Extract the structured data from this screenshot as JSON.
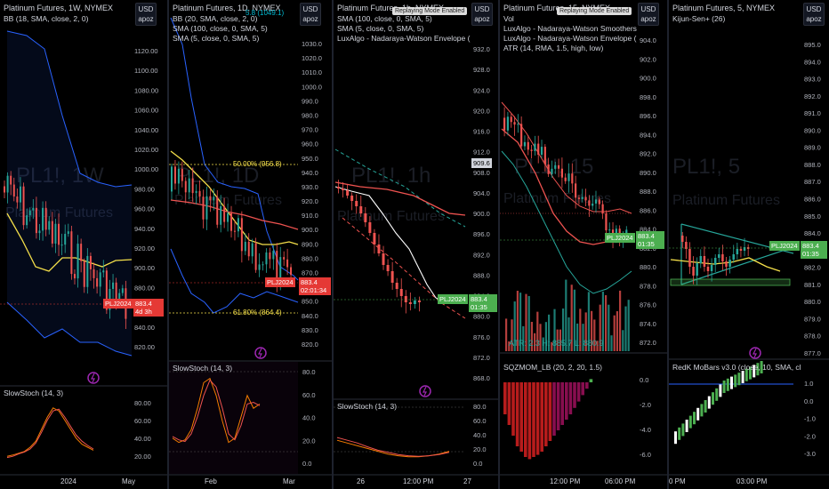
{
  "panels": [
    {
      "id": "p1",
      "title": "Platinum Futures, 1W, NYMEX",
      "indicators": [
        "BB (18, SMA, close, 2, 0)"
      ],
      "watermark": "PL1!, 1W",
      "watermark_sub": "Platinum Futures",
      "yticks": [
        "1120.00",
        "1100.00",
        "1080.00",
        "1060.00",
        "1040.00",
        "1020.00",
        "1000.00",
        "980.00",
        "960.00",
        "940.00",
        "920.00",
        "900.00",
        "880.00",
        "860.00",
        "840.00",
        "820.00"
      ],
      "price_tag": {
        "symbol": "PLJ2024",
        "price": "883.4",
        "countdown": "4d 3h"
      },
      "sub_title": "SlowStoch (14, 3)",
      "sub_ticks": [
        "80.00",
        "60.00",
        "40.00",
        "20.00"
      ],
      "xticks": [
        "2024",
        "May"
      ]
    },
    {
      "id": "p2",
      "title": "Platinum Futures, 1D, NYMEX",
      "indicators": [
        "BB (20, SMA, close, 2, 0)",
        "SMA (100, close, 0, SMA, 5)",
        "SMA (5, close, 0, SMA, 5)"
      ],
      "watermark": "PL1!, 1D",
      "watermark_sub": "Platinum Futures",
      "overlay_value": "5.8 (1049.1)",
      "fib": [
        {
          "label": "50.00% (956.8)"
        },
        {
          "label": "61.80% (864.4)"
        }
      ],
      "yticks": [
        "1030.0",
        "1020.0",
        "1010.0",
        "1000.0",
        "990.0",
        "980.0",
        "970.0",
        "960.0",
        "950.0",
        "940.0",
        "930.0",
        "920.0",
        "910.0",
        "900.0",
        "890.0",
        "880.0",
        "870.0",
        "860.0",
        "850.0",
        "840.0",
        "830.0",
        "820.0"
      ],
      "price_tag": {
        "symbol": "PLJ2024",
        "price": "883.4",
        "countdown": "02:01:34"
      },
      "sub_title": "SlowStoch (14, 3)",
      "sub_ticks": [
        "80.0",
        "60.0",
        "40.0",
        "20.0",
        "0.0"
      ],
      "xticks": [
        "Feb",
        "Mar"
      ]
    },
    {
      "id": "p3",
      "title": "Platinum Futures, 1h, NYMEX",
      "notice": "Replaying Mode Enabled",
      "indicators": [
        "SMA (100, close, 0, SMA, 5)",
        "SMA (5, close, 0, SMA, 5)",
        "LuxAlgo - Nadaraya-Watson Envelope ("
      ],
      "watermark": "PL1!, 1h",
      "watermark_sub": "Platinum Futures",
      "yticks": [
        "932.0",
        "928.0",
        "924.0",
        "920.0",
        "916.0",
        "912.0",
        "908.0",
        "904.0",
        "900.0",
        "896.0",
        "892.0",
        "888.0",
        "884.0",
        "880.0",
        "876.0",
        "872.0",
        "868.0"
      ],
      "last_value": "909.6",
      "price_tag": {
        "symbol": "PLJ2024",
        "price": "883.4",
        "countdown": "01:35"
      },
      "sub_title": "SlowStoch (14, 3)",
      "sub_ticks": [
        "80.0",
        "60.0",
        "40.0",
        "20.0",
        "0.0"
      ],
      "xticks": [
        "26",
        "12:00 PM",
        "27"
      ]
    },
    {
      "id": "p4",
      "title": "Platinum Futures, 15, NYMEX",
      "notice": "Replaying Mode Enabled",
      "indicators": [
        "Vol",
        "LuxAlgo - Nadaraya-Watson Smoothers",
        "LuxAlgo - Nadaraya-Watson Envelope (",
        "ATR (14, RMA, 1.5, high, low)"
      ],
      "watermark": "PL1!, 15",
      "watermark_sub": "Platinum Futures",
      "atr_text": "ATR: 2.3 H: 885.7 L: 880.9",
      "yticks": [
        "904.0",
        "902.0",
        "900.0",
        "898.0",
        "896.0",
        "894.0",
        "892.0",
        "890.0",
        "888.0",
        "886.0",
        "884.0",
        "882.0",
        "880.0",
        "878.0",
        "876.0",
        "874.0",
        "872.0"
      ],
      "price_tag": {
        "symbol": "PLJ2024",
        "price": "883.4",
        "countdown": "01:35"
      },
      "sub_title": "SQZMOM_LB (20, 2, 20, 1.5)",
      "sub_ticks": [
        "0.0",
        "-2.0",
        "-4.0",
        "-6.0"
      ],
      "xticks": [
        "12:00 PM",
        "06:00 PM"
      ]
    },
    {
      "id": "p5",
      "title": "Platinum Futures, 5, NYMEX",
      "indicators": [
        "Kijun-Sen+ (26)"
      ],
      "watermark": "PL1!, 5",
      "watermark_sub": "Platinum Futures",
      "yticks": [
        "895.0",
        "894.0",
        "893.0",
        "892.0",
        "891.0",
        "890.0",
        "889.0",
        "888.0",
        "887.0",
        "886.0",
        "885.0",
        "884.0",
        "883.0",
        "882.0",
        "881.0",
        "880.0",
        "879.0",
        "878.0",
        "877.0"
      ],
      "price_tag": {
        "symbol": "PLJ2024",
        "price": "883.4",
        "countdown": "01:35"
      },
      "sub_title": "RedK MoBars v3.0 (close, 10, SMA, cl",
      "sub_ticks": [
        "1.0",
        "0.0",
        "-1.0",
        "-2.0",
        "-3.0"
      ],
      "xticks": [
        "0 PM",
        "03:00 PM"
      ]
    }
  ],
  "currency": "USD",
  "currency_sub": "apoz",
  "colors": {
    "up": "#26a69a",
    "down": "#ef5350",
    "tag_red": "#e53935",
    "tag_green": "#4caf50",
    "yellow": "#f5e04a",
    "blue": "#2962ff",
    "grid": "#1e222d",
    "accent_cyan": "#00bcd4"
  }
}
